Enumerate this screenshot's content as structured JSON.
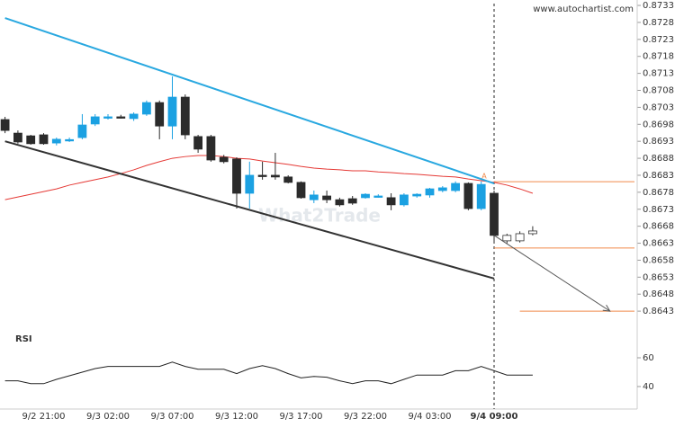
{
  "chart_data": {
    "type": "candlestick",
    "source": "www.autochartist.com",
    "watermark": "What2Trade",
    "indicator_title": "RSI",
    "categories": [
      null,
      null,
      null,
      "9/2 21:00",
      null,
      null,
      null,
      null,
      "9/3 02:00",
      null,
      null,
      null,
      null,
      "9/3 07:00",
      null,
      null,
      null,
      null,
      "9/3 12:00",
      null,
      null,
      null,
      null,
      "9/3 17:00",
      null,
      null,
      null,
      null,
      "9/3 22:00",
      null,
      null,
      null,
      null,
      "9/4 03:00",
      null,
      null,
      null,
      null,
      "9/4 09:00",
      null,
      null,
      null
    ],
    "candles": {
      "open": [
        0.86994,
        0.86954,
        0.86946,
        0.86949,
        0.86925,
        0.86933,
        0.86941,
        0.86981,
        0.87,
        0.87002,
        0.86997,
        0.8701,
        0.87044,
        0.86975,
        0.8706,
        0.86944,
        0.86944,
        0.86883,
        0.86878,
        0.86777,
        0.8683,
        0.8683,
        0.86825,
        0.86809,
        0.86758,
        0.86769,
        0.86758,
        0.86761,
        0.86764,
        0.86769,
        0.86764,
        0.86743,
        0.86769,
        0.86772,
        0.86785,
        0.86785,
        0.86806,
        0.86732,
        0.86777
      ],
      "high": [
        0.87002,
        0.86962,
        0.86949,
        0.86954,
        0.86941,
        0.86941,
        0.8701,
        0.8701,
        0.8701,
        0.87008,
        0.87015,
        0.8705,
        0.8705,
        0.87121,
        0.87068,
        0.86949,
        0.86949,
        0.8689,
        0.86883,
        0.8687,
        0.8687,
        0.86896,
        0.8683,
        0.86812,
        0.86785,
        0.86785,
        0.86764,
        0.86769,
        0.86777,
        0.86774,
        0.86777,
        0.86777,
        0.86777,
        0.86793,
        0.86798,
        0.86812,
        0.86809,
        0.86812,
        0.86785
      ],
      "low": [
        0.86954,
        0.86923,
        0.8692,
        0.8692,
        0.86918,
        0.86928,
        0.86936,
        0.86975,
        0.86994,
        0.86997,
        0.8699,
        0.87005,
        0.86936,
        0.86936,
        0.86936,
        0.86896,
        0.8687,
        0.86865,
        0.86732,
        0.86732,
        0.86817,
        0.86817,
        0.86806,
        0.86761,
        0.86748,
        0.86748,
        0.86738,
        0.86743,
        0.86761,
        0.86764,
        0.86727,
        0.86738,
        0.86764,
        0.86764,
        0.8678,
        0.8678,
        0.86727,
        0.86727,
        0.86631
      ],
      "close": [
        0.86962,
        0.86928,
        0.86923,
        0.86923,
        0.86936,
        0.86935,
        0.86978,
        0.87002,
        0.87002,
        0.87,
        0.8701,
        0.87044,
        0.86975,
        0.8706,
        0.86949,
        0.86907,
        0.86875,
        0.8687,
        0.86777,
        0.8683,
        0.86827,
        0.86825,
        0.86809,
        0.86764,
        0.86772,
        0.86758,
        0.86743,
        0.86748,
        0.86774,
        0.86769,
        0.86743,
        0.86772,
        0.86774,
        0.8679,
        0.86793,
        0.86806,
        0.86732,
        0.86803,
        0.86653
      ]
    },
    "projection": {
      "open": [
        0.86653,
        0.86637,
        0.86658
      ],
      "high": [
        0.86658,
        0.86665,
        0.8668
      ],
      "low": [
        0.8663,
        0.86632,
        0.86653
      ],
      "close": [
        0.86637,
        0.86658,
        0.86666
      ],
      "color": "#ffffff"
    },
    "up_color": "#1ba1e2",
    "down_color": "#2b2b2b",
    "moving_average": {
      "color": "#e53935",
      "values": [
        0.86758,
        0.86766,
        0.86774,
        0.86782,
        0.8679,
        0.86801,
        0.86809,
        0.86817,
        0.86825,
        0.86835,
        0.86846,
        0.86859,
        0.8687,
        0.8688,
        0.86885,
        0.86888,
        0.86888,
        0.86885,
        0.8688,
        0.86878,
        0.86872,
        0.86867,
        0.86862,
        0.86856,
        0.86851,
        0.86848,
        0.86846,
        0.86843,
        0.86843,
        0.8684,
        0.86838,
        0.86835,
        0.86833,
        0.8683,
        0.86827,
        0.86825,
        0.86819,
        0.86814,
        0.86809,
        0.86801,
        0.8679,
        0.86777
      ]
    },
    "trendlines": [
      {
        "color": "#29a8e0",
        "from": [
          0,
          0.87293
        ],
        "to": [
          38,
          0.86806
        ]
      },
      {
        "color": "#333333",
        "from": [
          0,
          0.8693
        ],
        "to": [
          38,
          0.86526
        ]
      }
    ],
    "arrow": {
      "color": "#555555",
      "from": [
        38,
        0.86653
      ],
      "to": [
        47,
        0.8643
      ]
    },
    "levels": [
      {
        "value": 0.86811,
        "from": 38
      },
      {
        "value": 0.86616,
        "from": 38
      },
      {
        "value": 0.8643,
        "from": 40
      }
    ],
    "level_color": "#f08a4b",
    "pattern_label": "A",
    "ylim": [
      0.8638,
      0.87346
    ],
    "yticks": [
      0.8733,
      0.8728,
      0.8723,
      0.8718,
      0.8713,
      0.8708,
      0.8703,
      0.8698,
      0.8693,
      0.8688,
      0.8683,
      0.8678,
      0.8673,
      0.8668,
      0.8663,
      0.8658,
      0.8653,
      0.8648,
      0.8643
    ],
    "rsi": {
      "color": "#222222",
      "values": [
        44,
        44,
        42,
        42,
        45,
        47.5,
        50,
        52.5,
        54,
        54,
        54,
        54,
        54,
        57,
        54,
        52,
        52,
        52,
        49,
        52.5,
        54.5,
        52.5,
        49,
        46,
        47,
        46.5,
        44,
        42,
        44,
        44,
        42,
        45,
        48,
        48,
        48,
        51,
        51,
        54,
        51,
        48,
        48,
        48
      ],
      "ylim": [
        25,
        80
      ],
      "yticks": [
        40,
        60
      ]
    }
  }
}
